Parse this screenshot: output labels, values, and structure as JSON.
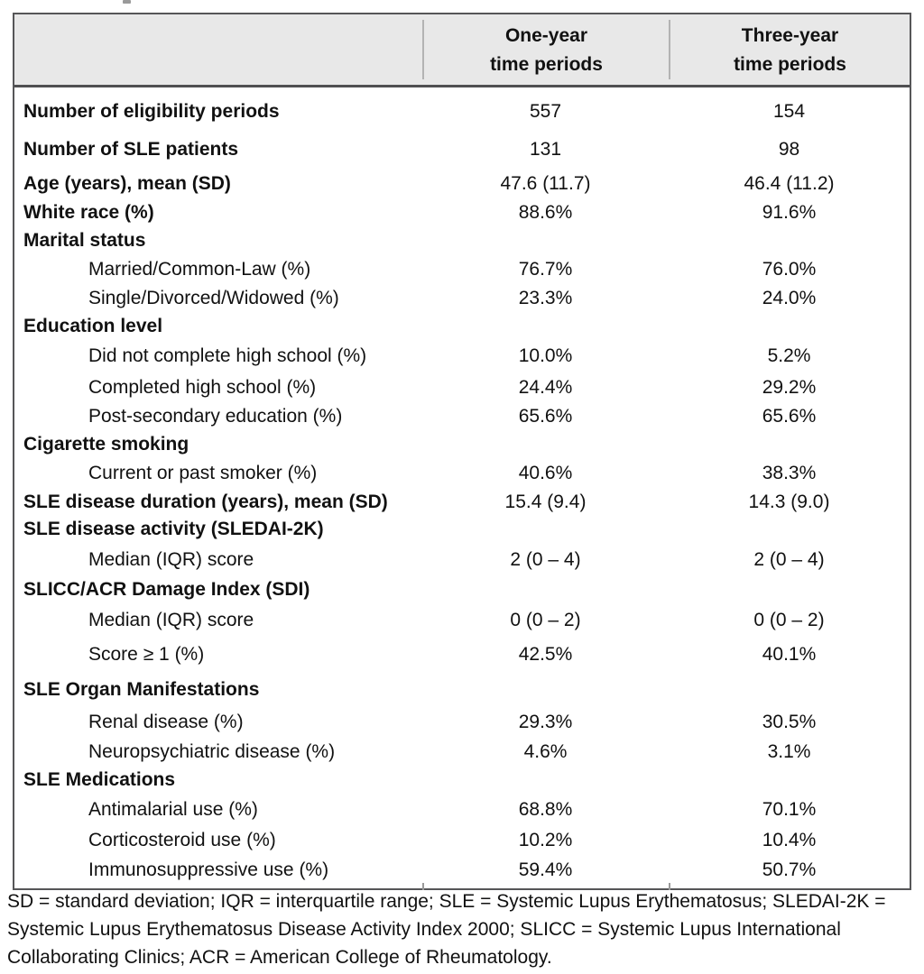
{
  "table": {
    "header": {
      "col_one_year_line1": "One-year",
      "col_one_year_line2": "time periods",
      "col_three_year_line1": "Three-year",
      "col_three_year_line2": "time periods"
    },
    "rows": [
      {
        "label": "Number of eligibility periods",
        "indent": false,
        "one_year": "557",
        "three_year": "154"
      },
      {
        "label": "Number of SLE patients",
        "indent": false,
        "one_year": "131",
        "three_year": "98"
      },
      {
        "label": "Age (years), mean (SD)",
        "indent": false,
        "one_year": "47.6 (11.7)",
        "three_year": "46.4 (11.2)"
      },
      {
        "label": "White race (%)",
        "indent": false,
        "one_year": "88.6%",
        "three_year": "91.6%"
      },
      {
        "label": "Marital status",
        "indent": false,
        "one_year": "",
        "three_year": ""
      },
      {
        "label": "Married/Common-Law (%)",
        "indent": true,
        "one_year": "76.7%",
        "three_year": "76.0%"
      },
      {
        "label": "Single/Divorced/Widowed (%)",
        "indent": true,
        "one_year": "23.3%",
        "three_year": "24.0%"
      },
      {
        "label": "Education level",
        "indent": false,
        "one_year": "",
        "three_year": ""
      },
      {
        "label": "Did not complete high school (%)",
        "indent": true,
        "one_year": "10.0%",
        "three_year": "5.2%"
      },
      {
        "label": "Completed high school (%)",
        "indent": true,
        "one_year": "24.4%",
        "three_year": "29.2%"
      },
      {
        "label": "Post-secondary education (%)",
        "indent": true,
        "one_year": "65.6%",
        "three_year": "65.6%"
      },
      {
        "label": "Cigarette smoking",
        "indent": false,
        "one_year": "",
        "three_year": ""
      },
      {
        "label": "Current or past smoker (%)",
        "indent": true,
        "one_year": "40.6%",
        "three_year": "38.3%"
      },
      {
        "label": "SLE disease duration (years), mean (SD)",
        "indent": false,
        "one_year": "15.4 (9.4)",
        "three_year": "14.3 (9.0)"
      },
      {
        "label": "SLE disease activity (SLEDAI-2K)",
        "indent": false,
        "one_year": "",
        "three_year": ""
      },
      {
        "label": "Median (IQR) score",
        "indent": true,
        "one_year": "2 (0 – 4)",
        "three_year": "2 (0 – 4)"
      },
      {
        "label": "SLICC/ACR Damage Index (SDI)",
        "indent": false,
        "one_year": "",
        "three_year": ""
      },
      {
        "label": "Median (IQR) score",
        "indent": true,
        "one_year": "0 (0 – 2)",
        "three_year": "0 (0 – 2)"
      },
      {
        "label": "Score ≥ 1 (%)",
        "indent": true,
        "one_year": "42.5%",
        "three_year": "40.1%"
      },
      {
        "label": "SLE Organ Manifestations",
        "indent": false,
        "one_year": "",
        "three_year": ""
      },
      {
        "label": "Renal disease (%)",
        "indent": true,
        "one_year": "29.3%",
        "three_year": "30.5%"
      },
      {
        "label": "Neuropsychiatric disease (%)",
        "indent": true,
        "one_year": "4.6%",
        "three_year": "3.1%"
      },
      {
        "label": "SLE Medications",
        "indent": false,
        "one_year": "",
        "three_year": ""
      },
      {
        "label": "Antimalarial use (%)",
        "indent": true,
        "one_year": "68.8%",
        "three_year": "70.1%"
      },
      {
        "label": "Corticosteroid use (%)",
        "indent": true,
        "one_year": "10.2%",
        "three_year": "10.4%"
      },
      {
        "label": "Immunosuppressive use (%)",
        "indent": true,
        "one_year": "59.4%",
        "three_year": "50.7%"
      }
    ],
    "footnote": "SD = standard deviation; IQR = interquartile range; SLE = Systemic Lupus Erythematosus; SLEDAI-2K = Systemic Lupus Erythematosus Disease Activity Index 2000; SLICC = Systemic Lupus International Collaborating Clinics; ACR = American College of Rheumatology."
  }
}
